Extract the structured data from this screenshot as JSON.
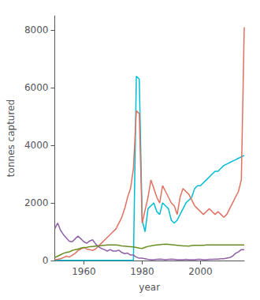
{
  "chart_data": {
    "type": "line",
    "xlabel": "year",
    "ylabel": "tonnes captured",
    "x": [
      1950,
      1951,
      1952,
      1953,
      1954,
      1955,
      1956,
      1957,
      1958,
      1959,
      1960,
      1961,
      1962,
      1963,
      1964,
      1965,
      1966,
      1967,
      1968,
      1969,
      1970,
      1971,
      1972,
      1973,
      1974,
      1975,
      1976,
      1977,
      1978,
      1979,
      1980,
      1981,
      1982,
      1983,
      1984,
      1985,
      1986,
      1987,
      1988,
      1989,
      1990,
      1991,
      1992,
      1993,
      1994,
      1995,
      1996,
      1997,
      1998,
      1999,
      2000,
      2001,
      2002,
      2003,
      2004,
      2005,
      2006,
      2007,
      2008,
      2009,
      2010,
      2011,
      2012,
      2013,
      2014,
      2015
    ],
    "series": [
      {
        "color": "#00BCD4",
        "values": [
          5,
          5,
          5,
          5,
          5,
          5,
          5,
          5,
          5,
          5,
          5,
          5,
          5,
          5,
          5,
          5,
          5,
          5,
          5,
          5,
          5,
          5,
          5,
          5,
          5,
          5,
          5,
          10,
          6400,
          6300,
          1400,
          1000,
          1800,
          1900,
          2000,
          1700,
          1600,
          2000,
          1900,
          1800,
          1400,
          1300,
          1400,
          1600,
          1800,
          2000,
          2100,
          2200,
          2500,
          2600,
          2600,
          2700,
          2800,
          2900,
          3000,
          3100,
          3100,
          3200,
          3300,
          3350,
          3400,
          3450,
          3500,
          3550,
          3600,
          3650
        ]
      },
      {
        "color": "#E07060",
        "values": [
          30,
          40,
          60,
          100,
          150,
          120,
          180,
          250,
          350,
          400,
          450,
          400,
          380,
          350,
          400,
          500,
          600,
          700,
          800,
          900,
          1000,
          1100,
          1300,
          1500,
          1800,
          2200,
          2500,
          3200,
          5200,
          5100,
          1300,
          1750,
          2200,
          2800,
          2500,
          2200,
          2000,
          2600,
          2400,
          2200,
          2000,
          1900,
          1600,
          2200,
          2500,
          2400,
          2300,
          2100,
          1900,
          1800,
          1700,
          1600,
          1700,
          1800,
          1700,
          1600,
          1700,
          1600,
          1500,
          1600,
          1800,
          2000,
          2200,
          2400,
          2800,
          8100
        ]
      },
      {
        "color": "#9060A8",
        "values": [
          1100,
          1300,
          1050,
          900,
          780,
          670,
          650,
          750,
          850,
          750,
          650,
          600,
          680,
          720,
          580,
          480,
          420,
          380,
          330,
          380,
          330,
          330,
          360,
          280,
          240,
          260,
          190,
          190,
          120,
          80,
          80,
          60,
          40,
          30,
          30,
          40,
          50,
          40,
          30,
          40,
          50,
          40,
          30,
          25,
          30,
          40,
          30,
          25,
          30,
          40,
          40,
          30,
          30,
          40,
          40,
          50,
          50,
          60,
          60,
          80,
          100,
          150,
          250,
          300,
          380,
          380
        ]
      },
      {
        "color": "#6B8E23",
        "values": [
          100,
          150,
          200,
          250,
          280,
          300,
          350,
          380,
          400,
          430,
          450,
          460,
          480,
          490,
          500,
          510,
          520,
          530,
          540,
          540,
          540,
          540,
          530,
          510,
          500,
          490,
          480,
          470,
          450,
          430,
          420,
          460,
          490,
          510,
          530,
          540,
          550,
          560,
          570,
          560,
          550,
          540,
          530,
          520,
          510,
          510,
          500,
          520,
          530,
          530,
          530,
          530,
          540,
          540,
          540,
          540,
          540,
          540,
          540,
          540,
          540,
          540,
          540,
          540,
          540,
          540
        ]
      }
    ],
    "xlim": [
      1950,
      2015
    ],
    "xticks": [
      1960,
      1980,
      2000
    ],
    "ylim": [
      0,
      8500
    ],
    "yticks": [
      0,
      2000,
      4000,
      6000,
      8000
    ],
    "grid": false
  }
}
